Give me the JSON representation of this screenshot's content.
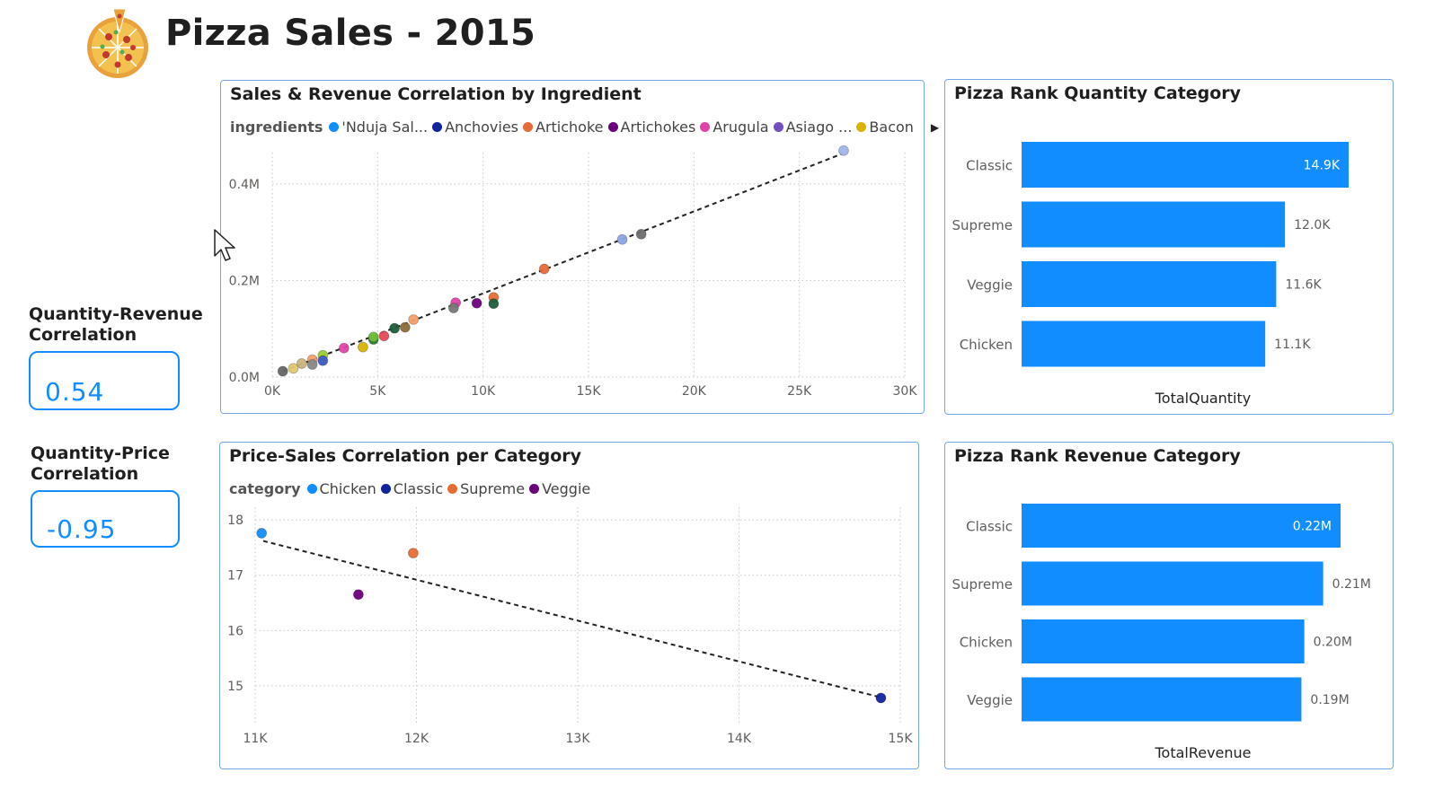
{
  "page": {
    "title": "Pizza Sales - 2015",
    "logo_icon": "pizza-icon"
  },
  "kpis": [
    {
      "label": "Quantity-Revenue Correlation",
      "label_lines": [
        "Quantity-Revenue",
        "Correlation"
      ],
      "value": "0.54"
    },
    {
      "label": "Quantity-Price Correlation",
      "label_lines": [
        "Quantity-Price",
        "Correlation"
      ],
      "value": "-0.95"
    }
  ],
  "colors": {
    "accent": "#118DFF",
    "card_border": "#74A9E6",
    "trend": "#222222"
  },
  "chart_data": [
    {
      "type": "scatter",
      "title": "Sales & Revenue Correlation by Ingredient",
      "legend_title": "ingredients",
      "legend": [
        {
          "name": "'Nduja Sal...",
          "color": "#118DFF"
        },
        {
          "name": "Anchovies",
          "color": "#12239E"
        },
        {
          "name": "Artichoke",
          "color": "#E66C37"
        },
        {
          "name": "Artichokes",
          "color": "#6B007B"
        },
        {
          "name": "Arugula",
          "color": "#E044A7"
        },
        {
          "name": "Asiago ...",
          "color": "#744EC2"
        },
        {
          "name": "Bacon",
          "color": "#D9B300"
        }
      ],
      "legend_position": "top",
      "xlim": [
        0,
        30000
      ],
      "ylim": [
        0,
        450000
      ],
      "x_ticks": [
        {
          "value": 0,
          "label": "0K"
        },
        {
          "value": 5000,
          "label": "5K"
        },
        {
          "value": 10000,
          "label": "10K"
        },
        {
          "value": 15000,
          "label": "15K"
        },
        {
          "value": 20000,
          "label": "20K"
        },
        {
          "value": 25000,
          "label": "25K"
        },
        {
          "value": 30000,
          "label": "30K"
        }
      ],
      "y_ticks": [
        {
          "value": 0,
          "label": "0.0M"
        },
        {
          "value": 200000,
          "label": "0.2M"
        },
        {
          "value": 400000,
          "label": "0.4M"
        }
      ],
      "grid": true,
      "trendline": {
        "from": [
          500,
          12000
        ],
        "to": [
          27000,
          462000
        ]
      },
      "points": [
        {
          "x": 27100,
          "y": 469000,
          "color": "#A0B4E8"
        },
        {
          "x": 17500,
          "y": 296000,
          "color": "#6E6E6E"
        },
        {
          "x": 16600,
          "y": 285000,
          "color": "#8DA4E6"
        },
        {
          "x": 12900,
          "y": 224000,
          "color": "#E66C37"
        },
        {
          "x": 10500,
          "y": 165000,
          "color": "#E66C37"
        },
        {
          "x": 10500,
          "y": 152000,
          "color": "#1E5C3A"
        },
        {
          "x": 9700,
          "y": 153000,
          "color": "#6B007B"
        },
        {
          "x": 8700,
          "y": 154000,
          "color": "#E044A7"
        },
        {
          "x": 8600,
          "y": 143000,
          "color": "#777777"
        },
        {
          "x": 6700,
          "y": 119000,
          "color": "#F4A06A"
        },
        {
          "x": 6300,
          "y": 103000,
          "color": "#8C6D3A"
        },
        {
          "x": 5800,
          "y": 101000,
          "color": "#1E5C3A"
        },
        {
          "x": 5300,
          "y": 85000,
          "color": "#E8495A"
        },
        {
          "x": 4800,
          "y": 78000,
          "color": "#2E7D32"
        },
        {
          "x": 4800,
          "y": 83000,
          "color": "#6FBF3A"
        },
        {
          "x": 4300,
          "y": 62000,
          "color": "#D9B300"
        },
        {
          "x": 3400,
          "y": 60000,
          "color": "#E044A7"
        },
        {
          "x": 2400,
          "y": 45000,
          "color": "#9ACD32"
        },
        {
          "x": 2400,
          "y": 34000,
          "color": "#3E59C6"
        },
        {
          "x": 1900,
          "y": 36000,
          "color": "#F4A06A"
        },
        {
          "x": 1900,
          "y": 26000,
          "color": "#888888"
        },
        {
          "x": 1400,
          "y": 28000,
          "color": "#C9B57F"
        },
        {
          "x": 1000,
          "y": 18000,
          "color": "#E0C870"
        },
        {
          "x": 500,
          "y": 12000,
          "color": "#666666"
        }
      ]
    },
    {
      "type": "bar",
      "title": "Pizza Rank Quantity Category",
      "categories": [
        "Classic",
        "Supreme",
        "Veggie",
        "Chicken"
      ],
      "values": [
        14900,
        12000,
        11600,
        11100
      ],
      "value_labels": [
        "14.9K",
        "12.0K",
        "11.6K",
        "11.1K"
      ],
      "xlabel": "TotalQuantity",
      "ylabel": "",
      "color": "#118DFF"
    },
    {
      "type": "scatter",
      "title": "Price-Sales Correlation per Category",
      "legend_title": "category",
      "legend": [
        {
          "name": "Chicken",
          "color": "#118DFF"
        },
        {
          "name": "Classic",
          "color": "#12239E"
        },
        {
          "name": "Supreme",
          "color": "#E66C37"
        },
        {
          "name": "Veggie",
          "color": "#6B007B"
        }
      ],
      "legend_position": "top",
      "xlim": [
        11000,
        15000
      ],
      "ylim": [
        14.3,
        18.1
      ],
      "x_ticks": [
        {
          "value": 11000,
          "label": "11K"
        },
        {
          "value": 12000,
          "label": "12K"
        },
        {
          "value": 13000,
          "label": "13K"
        },
        {
          "value": 14000,
          "label": "14K"
        },
        {
          "value": 15000,
          "label": "15K"
        }
      ],
      "y_ticks": [
        {
          "value": 15,
          "label": "15"
        },
        {
          "value": 16,
          "label": "16"
        },
        {
          "value": 17,
          "label": "17"
        },
        {
          "value": 18,
          "label": "18"
        }
      ],
      "grid": true,
      "trendline": {
        "from": [
          11050,
          17.62
        ],
        "to": [
          14880,
          14.79
        ]
      },
      "points": [
        {
          "x": 11040,
          "y": 17.76,
          "color": "#118DFF"
        },
        {
          "x": 14880,
          "y": 14.78,
          "color": "#12239E"
        },
        {
          "x": 11980,
          "y": 17.4,
          "color": "#E66C37"
        },
        {
          "x": 11640,
          "y": 16.65,
          "color": "#6B007B"
        }
      ]
    },
    {
      "type": "bar",
      "title": "Pizza Rank Revenue Category",
      "categories": [
        "Classic",
        "Supreme",
        "Chicken",
        "Veggie"
      ],
      "values": [
        220000,
        208000,
        195000,
        193000
      ],
      "value_labels": [
        "0.22M",
        "0.21M",
        "0.20M",
        "0.19M"
      ],
      "xlabel": "TotalRevenue",
      "ylabel": "",
      "color": "#118DFF"
    }
  ]
}
